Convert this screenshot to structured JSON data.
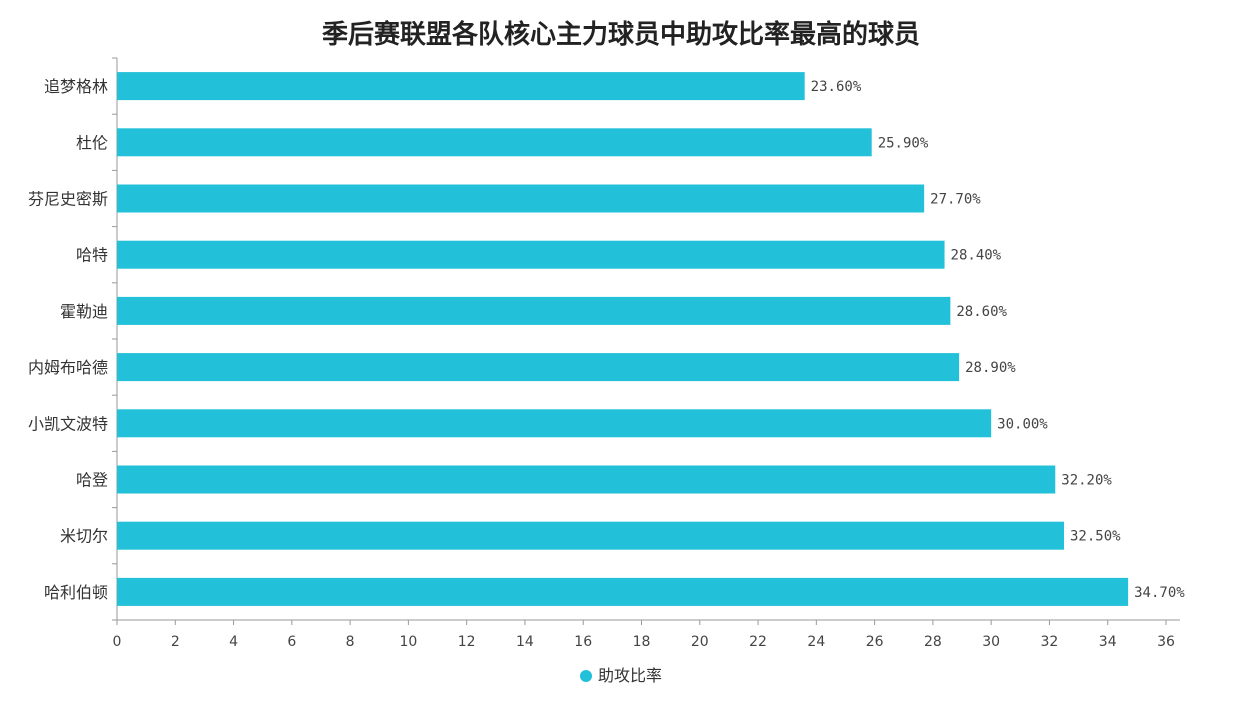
{
  "chart_data": {
    "type": "bar",
    "orientation": "horizontal",
    "title": "季后赛联盟各队核心主力球员中助攻比率最高的球员",
    "categories": [
      "追梦格林",
      "杜伦",
      "芬尼史密斯",
      "哈特",
      "霍勒迪",
      "内姆布哈德",
      "小凯文波特",
      "哈登",
      "米切尔",
      "哈利伯顿"
    ],
    "series": [
      {
        "name": "助攻比率",
        "values": [
          23.6,
          25.9,
          27.7,
          28.4,
          28.6,
          28.9,
          30.0,
          32.2,
          32.5,
          34.7
        ],
        "value_labels": [
          "23.60%",
          "25.90%",
          "27.70%",
          "28.40%",
          "28.60%",
          "28.90%",
          "30.00%",
          "32.20%",
          "32.50%",
          "34.70%"
        ],
        "color": "#22c0d9"
      }
    ],
    "xlim": [
      0,
      36
    ],
    "xticks": [
      0,
      2,
      4,
      6,
      8,
      10,
      12,
      14,
      16,
      18,
      20,
      22,
      24,
      26,
      28,
      30,
      32,
      34,
      36
    ],
    "xlabel": "",
    "ylabel": "",
    "grid": false,
    "legend": "bottom"
  }
}
